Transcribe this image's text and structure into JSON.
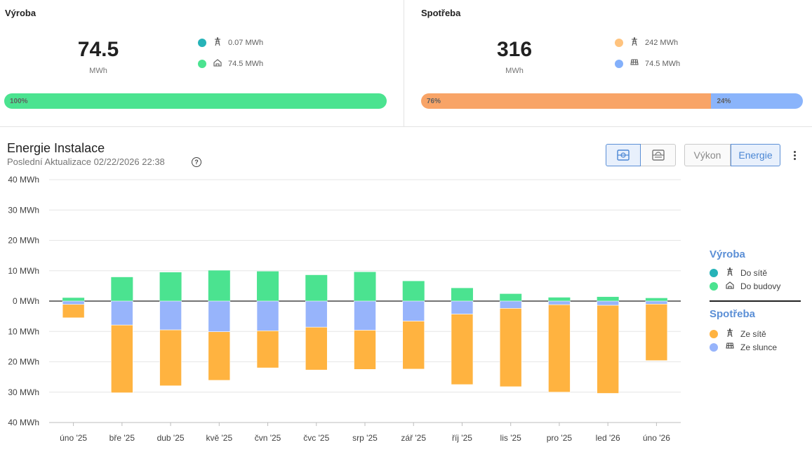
{
  "production": {
    "title": "Výroba",
    "value": "74.5",
    "unit": "MWh",
    "items": [
      {
        "value": "0.07 MWh",
        "color": "#26b3b8",
        "icon": "power-pylon-icon"
      },
      {
        "value": "74.5 MWh",
        "color": "#4be390",
        "icon": "home-icon"
      }
    ],
    "bar": [
      {
        "percent": 100,
        "label": "100%",
        "color": "#4be390"
      }
    ]
  },
  "consumption": {
    "title": "Spotřeba",
    "value": "316",
    "unit": "MWh",
    "items": [
      {
        "value": "242 MWh",
        "color": "#ffc37e",
        "icon": "power-pylon-icon"
      },
      {
        "value": "74.5 MWh",
        "color": "#83b0fb",
        "icon": "solar-panel-icon"
      }
    ],
    "bar": [
      {
        "percent": 76,
        "label": "76%",
        "color": "#f8a467"
      },
      {
        "percent": 24,
        "label": "24%",
        "color": "#8ab4fb"
      }
    ]
  },
  "chart_header": {
    "title": "Energie Instalace",
    "subtitle": "Poslední Aktualizace 02/22/2026 22:38"
  },
  "toolbar": {
    "view_toggle": [
      {
        "icon": "stacked-view-icon",
        "active": true
      },
      {
        "icon": "split-view-icon",
        "active": false
      }
    ],
    "mode_toggle": [
      {
        "label": "Výkon",
        "active": false
      },
      {
        "label": "Energie",
        "active": true
      }
    ],
    "menu_icon": "more-vertical-icon"
  },
  "legend": {
    "production_title": "Výroba",
    "production_items": [
      {
        "label": "Do sítě",
        "color": "#26b3b8",
        "icon": "power-pylon-icon"
      },
      {
        "label": "Do budovy",
        "color": "#4be390",
        "icon": "home-icon"
      }
    ],
    "consumption_title": "Spotřeba",
    "consumption_items": [
      {
        "label": "Ze sítě",
        "color": "#ffb340",
        "icon": "power-pylon-icon"
      },
      {
        "label": "Ze slunce",
        "color": "#97b4fb",
        "icon": "solar-panel-icon"
      }
    ]
  },
  "chart_data": {
    "type": "bar",
    "categories": [
      "úno '25",
      "bře '25",
      "dub '25",
      "kvě '25",
      "čvn '25",
      "čvc '25",
      "srp '25",
      "zář '25",
      "říj '25",
      "lis '25",
      "pro '25",
      "led '26",
      "úno '26"
    ],
    "ylim": [
      -40,
      40
    ],
    "yticks": [
      {
        "value": 40,
        "label": "40 MWh"
      },
      {
        "value": 30,
        "label": "30 MWh"
      },
      {
        "value": 20,
        "label": "20 MWh"
      },
      {
        "value": 10,
        "label": "10 MWh"
      },
      {
        "value": 0,
        "label": "0 MWh"
      },
      {
        "value": -10,
        "label": "10 MWh"
      },
      {
        "value": -20,
        "label": "20 MWh"
      },
      {
        "value": -30,
        "label": "30 MWh"
      },
      {
        "value": -40,
        "label": "40 MWh"
      }
    ],
    "series": [
      {
        "name": "Do sítě",
        "stack": "production",
        "color": "#26b3b8",
        "values": [
          0,
          0,
          0,
          0,
          0,
          0,
          0,
          0,
          0,
          0,
          0,
          0,
          0
        ]
      },
      {
        "name": "Do budovy",
        "stack": "production",
        "color": "#4be390",
        "values": [
          1.1,
          7.9,
          9.5,
          10.1,
          9.8,
          8.6,
          9.6,
          6.6,
          4.3,
          2.4,
          1.2,
          1.4,
          1.0
        ]
      },
      {
        "name": "Ze slunce",
        "stack": "consumption",
        "color": "#97b4fb",
        "values": [
          1.1,
          7.9,
          9.5,
          10.1,
          9.8,
          8.6,
          9.6,
          6.6,
          4.3,
          2.4,
          1.2,
          1.4,
          1.0
        ]
      },
      {
        "name": "Ze sítě",
        "stack": "consumption",
        "color": "#ffb340",
        "values": [
          4.4,
          22.3,
          18.4,
          16.0,
          12.2,
          14.1,
          12.9,
          15.8,
          23.2,
          25.8,
          28.8,
          29.0,
          18.6
        ]
      }
    ],
    "grid": true
  }
}
